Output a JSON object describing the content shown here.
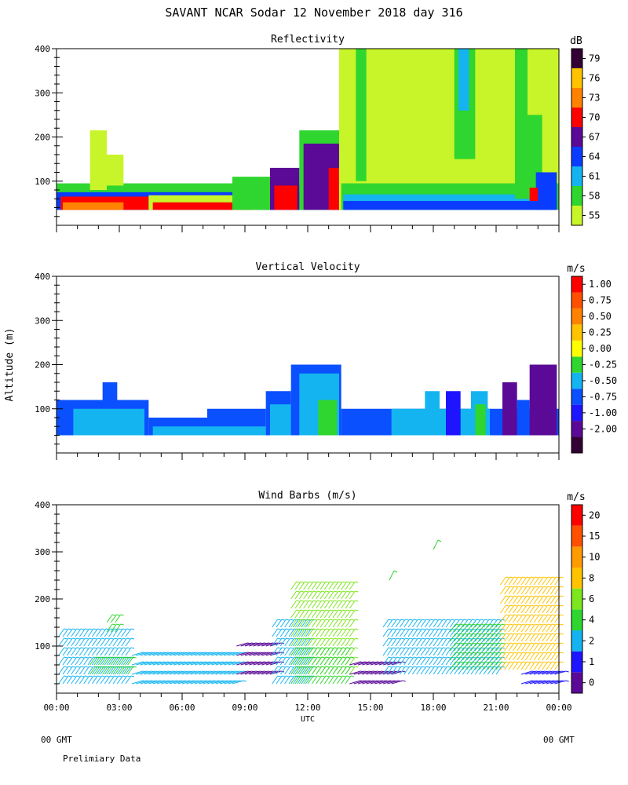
{
  "header": {
    "title": "SAVANT  NCAR Sodar  12 November 2018  day 316",
    "footer_left": "00 GMT",
    "footer_right": "00 GMT",
    "footnote": "Prelimiary Data"
  },
  "chart_data": [
    {
      "type": "heatmap",
      "title": "Reflectivity",
      "ylabel": "",
      "xlabel": "",
      "ylim": [
        0,
        400
      ],
      "xlim": [
        0,
        24
      ],
      "yticks": [
        100,
        200,
        300,
        400
      ],
      "colorbar_unit": "dB",
      "colorbar_labels": [
        "55",
        "58",
        "61",
        "64",
        "67",
        "70",
        "73",
        "76",
        "79"
      ],
      "colorbar_colors": [
        "#c8f52a",
        "#2fd62f",
        "#14b4f0",
        "#0a3cff",
        "#5a0a96",
        "#ff0000",
        "#ff8200",
        "#ffc300",
        "#330033"
      ],
      "cells": [
        {
          "x0": 0.0,
          "x1": 13.6,
          "y0": 35,
          "y1": 95,
          "c": 1
        },
        {
          "x0": 0.0,
          "x1": 13.6,
          "y0": 35,
          "y1": 75,
          "c": 3
        },
        {
          "x0": 0.2,
          "x1": 4.4,
          "y0": 35,
          "y1": 65,
          "c": 5
        },
        {
          "x0": 0.3,
          "x1": 3.2,
          "y0": 35,
          "y1": 52,
          "c": 6
        },
        {
          "x0": 1.6,
          "x1": 2.4,
          "y0": 80,
          "y1": 215,
          "c": 0
        },
        {
          "x0": 2.4,
          "x1": 3.2,
          "y0": 90,
          "y1": 160,
          "c": 0
        },
        {
          "x0": 4.4,
          "x1": 9.6,
          "y0": 35,
          "y1": 68,
          "c": 0
        },
        {
          "x0": 4.6,
          "x1": 9.4,
          "y0": 35,
          "y1": 52,
          "c": 5
        },
        {
          "x0": 8.4,
          "x1": 10.2,
          "y0": 35,
          "y1": 110,
          "c": 1
        },
        {
          "x0": 10.2,
          "x1": 11.6,
          "y0": 35,
          "y1": 130,
          "c": 4
        },
        {
          "x0": 10.4,
          "x1": 11.5,
          "y0": 35,
          "y1": 90,
          "c": 5
        },
        {
          "x0": 11.6,
          "x1": 13.6,
          "y0": 35,
          "y1": 215,
          "c": 1
        },
        {
          "x0": 11.8,
          "x1": 13.5,
          "y0": 35,
          "y1": 185,
          "c": 4
        },
        {
          "x0": 13.0,
          "x1": 13.6,
          "y0": 35,
          "y1": 130,
          "c": 5
        },
        {
          "x0": 13.5,
          "x1": 24.0,
          "y0": 35,
          "y1": 400,
          "c": 0
        },
        {
          "x0": 13.6,
          "x1": 24.0,
          "y0": 35,
          "y1": 95,
          "c": 1
        },
        {
          "x0": 13.7,
          "x1": 23.9,
          "y0": 35,
          "y1": 70,
          "c": 2
        },
        {
          "x0": 13.7,
          "x1": 23.9,
          "y0": 35,
          "y1": 55,
          "c": 3
        },
        {
          "x0": 14.3,
          "x1": 14.8,
          "y0": 100,
          "y1": 400,
          "c": 1
        },
        {
          "x0": 19.0,
          "x1": 20.0,
          "y0": 150,
          "y1": 400,
          "c": 1
        },
        {
          "x0": 19.2,
          "x1": 19.7,
          "y0": 260,
          "y1": 400,
          "c": 2
        },
        {
          "x0": 21.9,
          "x1": 22.5,
          "y0": 60,
          "y1": 400,
          "c": 1
        },
        {
          "x0": 22.5,
          "x1": 23.2,
          "y0": 60,
          "y1": 250,
          "c": 1
        },
        {
          "x0": 22.9,
          "x1": 23.9,
          "y0": 35,
          "y1": 120,
          "c": 3
        },
        {
          "x0": 22.6,
          "x1": 23.0,
          "y0": 55,
          "y1": 85,
          "c": 5
        }
      ]
    },
    {
      "type": "heatmap",
      "title": "Vertical Velocity",
      "ylabel": "Altitude (m)",
      "xlabel": "",
      "ylim": [
        0,
        400
      ],
      "xlim": [
        0,
        24
      ],
      "yticks": [
        100,
        200,
        300,
        400
      ],
      "colorbar_unit": "m/s",
      "colorbar_labels": [
        "-2.00",
        "-1.00",
        "-0.75",
        "-0.50",
        "-0.25",
        "0.00",
        "0.25",
        "0.50",
        "0.75",
        "1.00"
      ],
      "colorbar_colors": [
        "#330033",
        "#5a0a96",
        "#1e14ff",
        "#0a50ff",
        "#14b4f0",
        "#2fd62f",
        "#ffff00",
        "#ffc300",
        "#ff8200",
        "#ff5000",
        "#ff0000"
      ],
      "cells": [
        {
          "x0": 0.0,
          "x1": 4.4,
          "y0": 40,
          "y1": 120,
          "c": 3
        },
        {
          "x0": 2.2,
          "x1": 2.9,
          "y0": 120,
          "y1": 160,
          "c": 3
        },
        {
          "x0": 0.8,
          "x1": 4.2,
          "y0": 40,
          "y1": 100,
          "c": 4
        },
        {
          "x0": 4.4,
          "x1": 7.2,
          "y0": 40,
          "y1": 80,
          "c": 3
        },
        {
          "x0": 7.2,
          "x1": 10.0,
          "y0": 40,
          "y1": 100,
          "c": 3
        },
        {
          "x0": 4.6,
          "x1": 10.0,
          "y0": 40,
          "y1": 60,
          "c": 4
        },
        {
          "x0": 10.0,
          "x1": 11.2,
          "y0": 40,
          "y1": 140,
          "c": 3
        },
        {
          "x0": 10.2,
          "x1": 11.5,
          "y0": 40,
          "y1": 110,
          "c": 4
        },
        {
          "x0": 11.2,
          "x1": 13.6,
          "y0": 40,
          "y1": 200,
          "c": 3
        },
        {
          "x0": 11.6,
          "x1": 13.5,
          "y0": 40,
          "y1": 180,
          "c": 4
        },
        {
          "x0": 12.5,
          "x1": 13.4,
          "y0": 40,
          "y1": 120,
          "c": 5
        },
        {
          "x0": 13.6,
          "x1": 24.0,
          "y0": 40,
          "y1": 100,
          "c": 3
        },
        {
          "x0": 16.0,
          "x1": 20.7,
          "y0": 40,
          "y1": 100,
          "c": 4
        },
        {
          "x0": 17.6,
          "x1": 18.3,
          "y0": 40,
          "y1": 140,
          "c": 4
        },
        {
          "x0": 18.6,
          "x1": 19.3,
          "y0": 40,
          "y1": 140,
          "c": 2
        },
        {
          "x0": 19.8,
          "x1": 20.6,
          "y0": 40,
          "y1": 140,
          "c": 4
        },
        {
          "x0": 20.0,
          "x1": 20.5,
          "y0": 40,
          "y1": 110,
          "c": 5
        },
        {
          "x0": 21.3,
          "x1": 22.0,
          "y0": 40,
          "y1": 160,
          "c": 1
        },
        {
          "x0": 22.0,
          "x1": 22.6,
          "y0": 40,
          "y1": 120,
          "c": 3
        },
        {
          "x0": 22.6,
          "x1": 23.9,
          "y0": 40,
          "y1": 200,
          "c": 1
        }
      ]
    },
    {
      "type": "scatter",
      "title": "Wind Barbs (m/s)",
      "ylabel": "",
      "xlabel": "UTC",
      "ylim": [
        0,
        400
      ],
      "xlim": [
        0,
        24
      ],
      "yticks": [
        100,
        200,
        300,
        400
      ],
      "xticks": [
        "00:00",
        "03:00",
        "06:00",
        "09:00",
        "12:00",
        "15:00",
        "18:00",
        "21:00",
        "00:00"
      ],
      "colorbar_unit": "m/s",
      "colorbar_labels": [
        "0",
        "1",
        "2",
        "4",
        "6",
        "8",
        "10",
        "15",
        "20"
      ],
      "colorbar_colors": [
        "#5a0a96",
        "#1e14ff",
        "#14b4f0",
        "#2fd62f",
        "#7ee61e",
        "#ffc300",
        "#ff9a00",
        "#ff5000",
        "#ff0000"
      ],
      "barb_groups": [
        {
          "x0": 0.1,
          "x1": 3.4,
          "y0": 20,
          "y1": 130,
          "c": 2,
          "dir": "up"
        },
        {
          "x0": 1.6,
          "x1": 3.4,
          "y0": 40,
          "y1": 70,
          "c": 3,
          "dir": "up"
        },
        {
          "x0": 2.4,
          "x1": 2.8,
          "y0": 130,
          "y1": 150,
          "c": 3,
          "dir": "up"
        },
        {
          "x0": 3.6,
          "x1": 8.4,
          "y0": 20,
          "y1": 90,
          "c": 2,
          "dir": "flat"
        },
        {
          "x0": 8.6,
          "x1": 10.2,
          "y0": 40,
          "y1": 100,
          "c": 0,
          "dir": "flat"
        },
        {
          "x0": 10.3,
          "x1": 12.0,
          "y0": 20,
          "y1": 150,
          "c": 2,
          "dir": "up"
        },
        {
          "x0": 11.2,
          "x1": 14.0,
          "y0": 40,
          "y1": 220,
          "c": 4,
          "dir": "up"
        },
        {
          "x0": 11.2,
          "x1": 13.8,
          "y0": 20,
          "y1": 80,
          "c": 3,
          "dir": "up"
        },
        {
          "x0": 14.0,
          "x1": 16.0,
          "y0": 20,
          "y1": 60,
          "c": 0,
          "dir": "flat"
        },
        {
          "x0": 15.6,
          "x1": 21.0,
          "y0": 40,
          "y1": 140,
          "c": 2,
          "dir": "up"
        },
        {
          "x0": 18.8,
          "x1": 21.0,
          "y0": 50,
          "y1": 140,
          "c": 3,
          "dir": "up"
        },
        {
          "x0": 21.2,
          "x1": 23.8,
          "y0": 50,
          "y1": 230,
          "c": 5,
          "dir": "up"
        },
        {
          "x0": 22.2,
          "x1": 23.8,
          "y0": 20,
          "y1": 50,
          "c": 1,
          "dir": "flat"
        }
      ],
      "isolated_barbs": [
        {
          "x": 15.9,
          "y": 240,
          "c": 3
        },
        {
          "x": 18.0,
          "y": 305,
          "c": 3
        }
      ]
    }
  ]
}
